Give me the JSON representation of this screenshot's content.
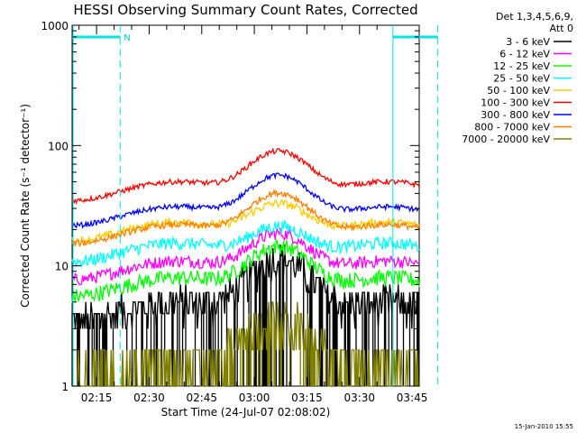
{
  "chart_data": {
    "type": "line",
    "title": "HESSI Observing Summary Count Rates, Corrected",
    "xlabel": "Start Time (24-Jul-07 02:08:02)",
    "ylabel": "Corrected Count Rate (s⁻¹ detector⁻¹)",
    "y_scale": "log",
    "ylim": [
      1,
      1000
    ],
    "xlim": [
      "02:08:02",
      "03:47:00"
    ],
    "x_ticks": [
      "02:15",
      "02:30",
      "02:45",
      "03:00",
      "03:15",
      "03:30",
      "03:45"
    ],
    "x_ticks_minutes": [
      15,
      30,
      45,
      60,
      75,
      90,
      105
    ],
    "y_ticks": [
      "1",
      "10",
      "100",
      "1000"
    ],
    "legend_header": [
      "Det 1,3,4,5,6,9,",
      "Att 0"
    ],
    "legend_position": "right",
    "series": [
      {
        "name": "3 - 6 keV",
        "color": "#000000",
        "base": 5.0,
        "peak": 13.0,
        "noise": 0.35,
        "quantized": true
      },
      {
        "name": "6 - 12 keV",
        "color": "#ff00ff",
        "base": 11.0,
        "peak": 22.0,
        "noise": 0.12
      },
      {
        "name": "12 - 25 keV",
        "color": "#00ff00",
        "base": 8.0,
        "peak": 17.0,
        "noise": 0.15
      },
      {
        "name": "25 - 50 keV",
        "color": "#00ffff",
        "base": 15.5,
        "peak": 26.0,
        "noise": 0.12
      },
      {
        "name": "50 - 100 keV",
        "color": "#ffcc00",
        "base": 23.0,
        "peak": 40.0,
        "noise": 0.08
      },
      {
        "name": "100 - 300 keV",
        "color": "#ff0000",
        "base": 50.0,
        "peak": 105.0,
        "noise": 0.05
      },
      {
        "name": "300 - 800 keV",
        "color": "#0000ff",
        "base": 31.0,
        "peak": 66.0,
        "noise": 0.05
      },
      {
        "name": "800 - 7000 keV",
        "color": "#ff8000",
        "base": 22.0,
        "peak": 47.0,
        "noise": 0.06
      },
      {
        "name": "7000 - 20000 keV",
        "color": "#808000",
        "base": 1.6,
        "peak": 4.0,
        "noise": 0.5,
        "quantized": true
      }
    ],
    "annotations": {
      "night_bars": [
        {
          "start_min": 0,
          "end_min": 13.7,
          "label": "N"
        },
        {
          "start_min": 91.5,
          "end_min": 104.3,
          "label": ""
        }
      ],
      "dashed_lines_min": [
        13.7,
        104.3
      ],
      "solid_line_min": 91.5
    }
  },
  "footer": "15-Jan-2010 15:55"
}
